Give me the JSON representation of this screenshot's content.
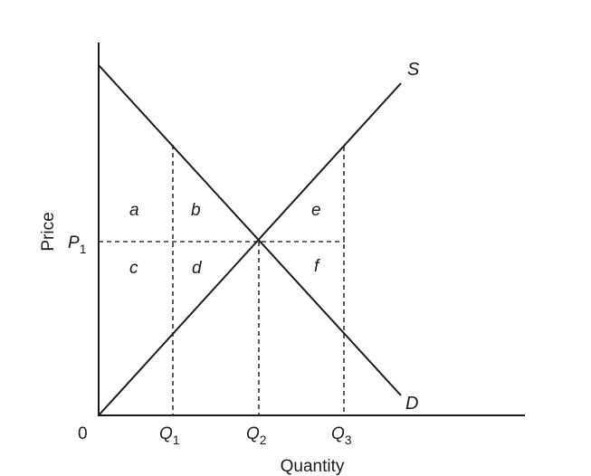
{
  "axes": {
    "x_title": "Quantity",
    "y_title": "Price",
    "origin": "0"
  },
  "ticks": {
    "q1": {
      "letter": "Q",
      "sub": "1"
    },
    "q2": {
      "letter": "Q",
      "sub": "2"
    },
    "q3": {
      "letter": "Q",
      "sub": "3"
    },
    "p1": {
      "letter": "P",
      "sub": "1"
    }
  },
  "curves": {
    "supply": "S",
    "demand": "D"
  },
  "regions": {
    "a": "a",
    "b": "b",
    "c": "c",
    "d": "d",
    "e": "e",
    "f": "f"
  }
}
